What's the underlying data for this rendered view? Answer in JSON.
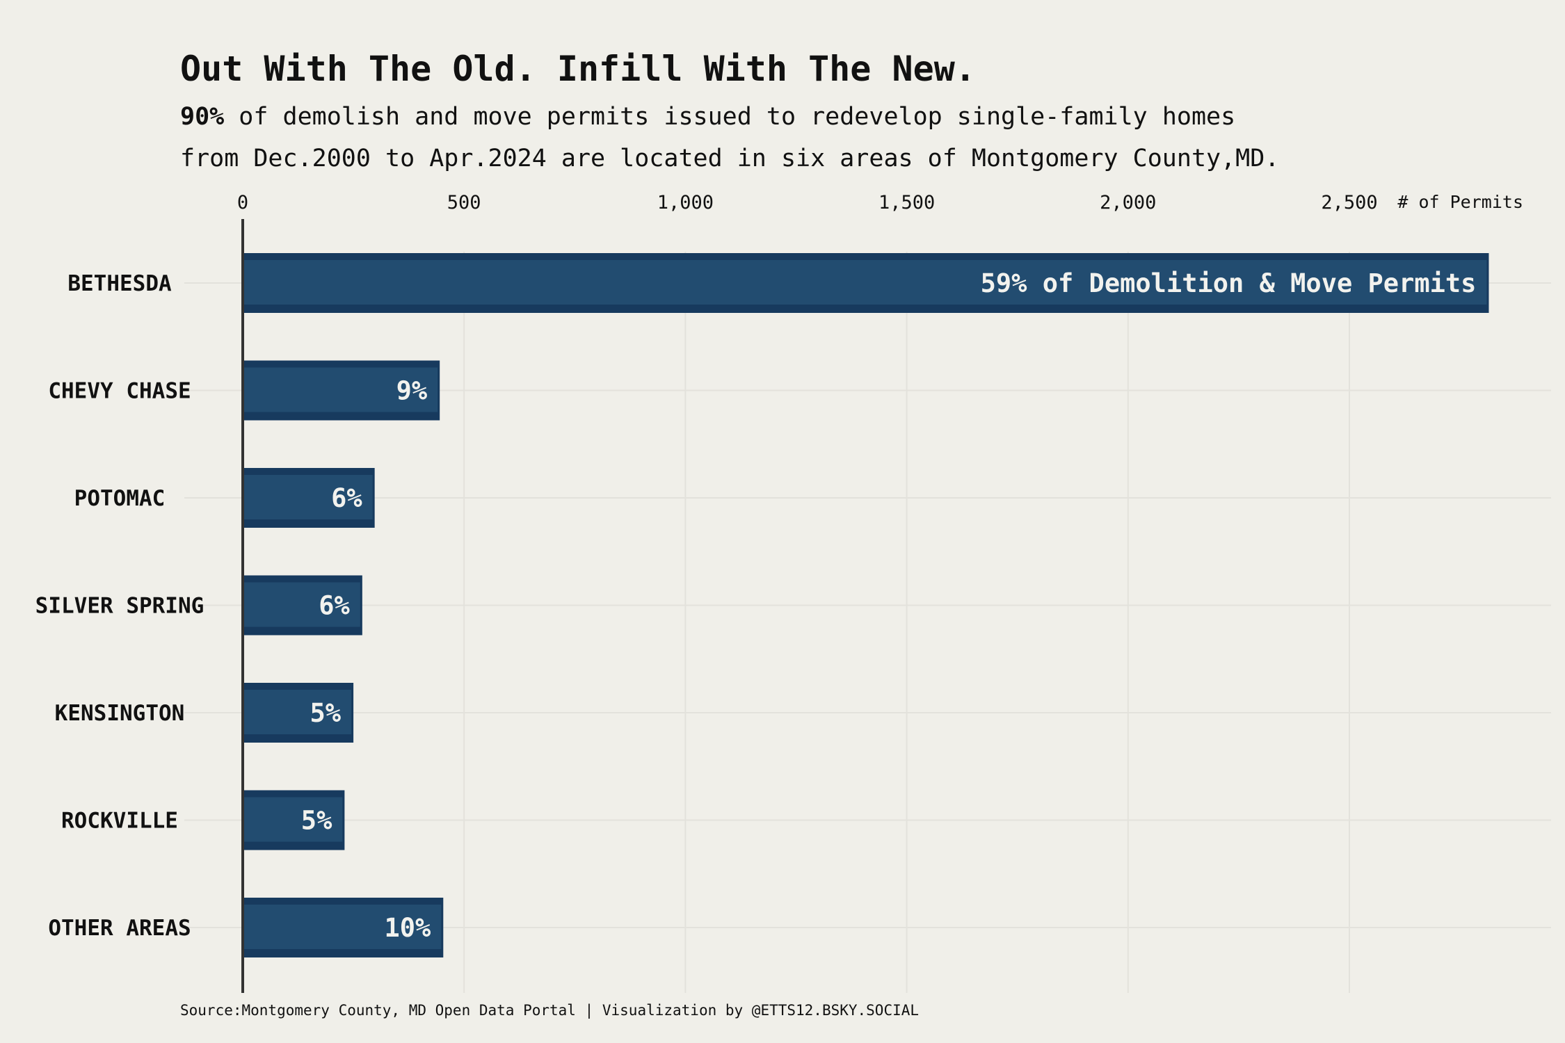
{
  "title": "Out With The Old. Infill With The New.",
  "subtitle": {
    "bold": "90%",
    "line1_rest": " of demolish and move permits issued to redevelop single-family homes",
    "line2": "from Dec.2000 to Apr.2024 are located in six areas of Montgomery County,MD."
  },
  "caption": "Source:Montgomery County, MD Open Data Portal | Visualization by @ETTS12.BSKY.SOCIAL",
  "colors": {
    "background": "#f0efe9",
    "bar": "#224c70",
    "bar_edge": "#173a5e",
    "label": "#f2f2ee",
    "grid": "#e3e2dc",
    "axis": "#333333"
  },
  "chart_data": {
    "type": "bar",
    "orientation": "horizontal",
    "categories": [
      "BETHESDA",
      "CHEVY CHASE",
      "POTOMAC",
      "SILVER SPRING",
      "KENSINGTON",
      "ROCKVILLE",
      "OTHER AREAS"
    ],
    "values": [
      2815,
      445,
      298,
      270,
      250,
      230,
      453
    ],
    "data_labels": [
      "59% of Demolition & Move Permits",
      "9%",
      "6%",
      "6%",
      "5%",
      "5%",
      "10%"
    ],
    "xlabel": "# of Permits",
    "xticks": [
      0,
      500,
      1000,
      1500,
      2000,
      2500
    ],
    "xtick_labels": [
      "0",
      "500",
      "1,000",
      "1,500",
      "2,000",
      "2,500"
    ],
    "axis_position": "top",
    "grid": true
  }
}
